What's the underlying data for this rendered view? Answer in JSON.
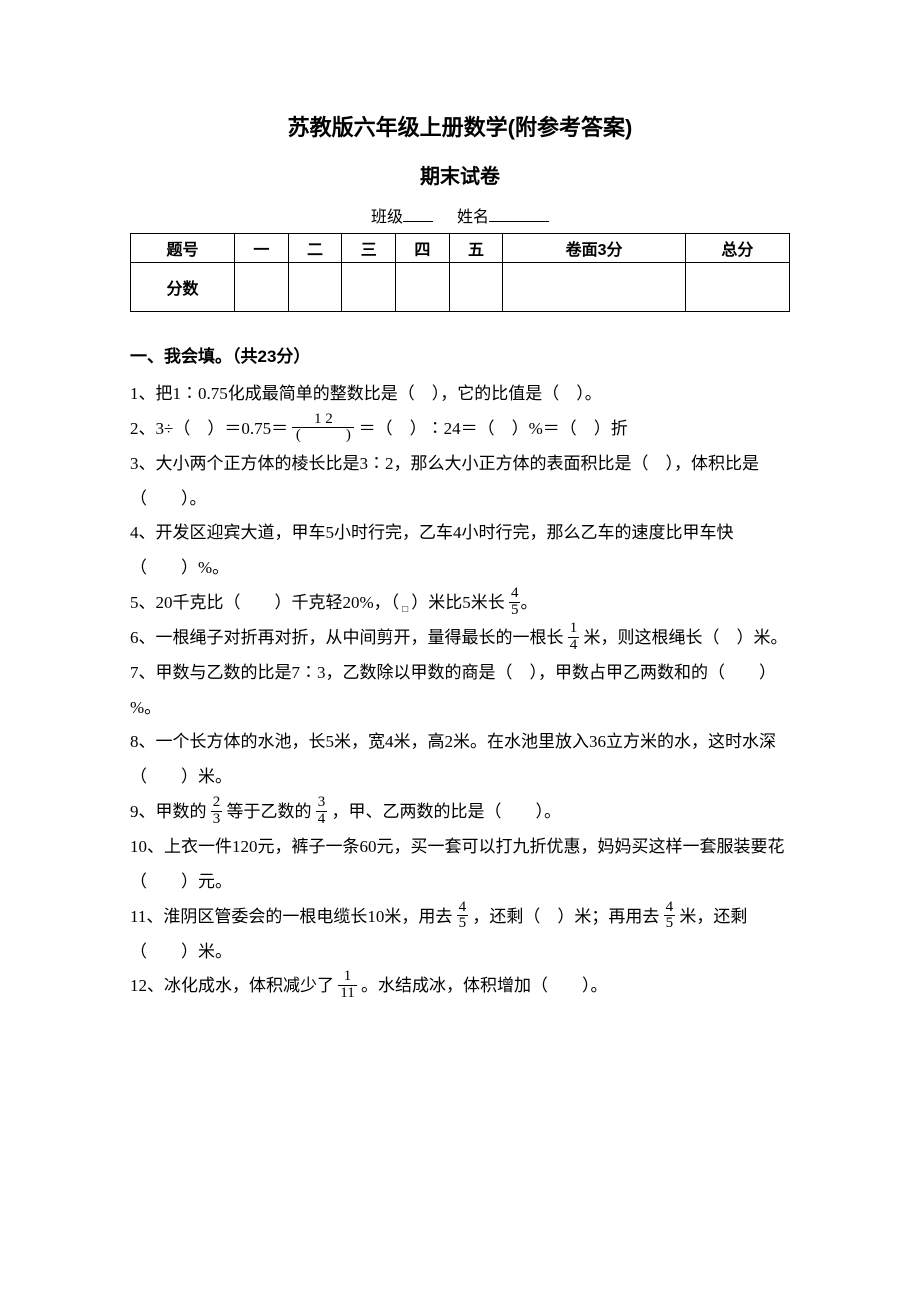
{
  "title_main": "苏教版六年级上册数学(附参考答案)",
  "title_sub": "期末试卷",
  "class_label": "班级",
  "name_label": "姓名",
  "score_table": {
    "headers": [
      "题号",
      "一",
      "二",
      "三",
      "四",
      "五",
      "卷面3分",
      "总分"
    ],
    "row_label": "分数"
  },
  "section1_head": "一、我会填。（共23分）",
  "q1": "1、把1∶0.75化成最简单的整数比是（　），它的比值是（　）。",
  "q2_a": "2、3÷（　）＝0.75＝",
  "q2_frac_num": "1  2",
  "q2_frac_den": "(　　　)",
  "q2_b": "＝（　）∶24＝（　）%＝（　）折",
  "q3": "3、大小两个正方体的棱长比是3∶2，那么大小正方体的表面积比是（　），体积比是（　　）。",
  "q4": "4、开发区迎宾大道，甲车5小时行完，乙车4小时行完，那么乙车的速度比甲车快（　　）%。",
  "q5_a": "5、20千克比（　　）千克轻20%，（",
  "q5_dot": "□",
  "q5_b": "）米比5米长",
  "q5_frac_num": "4",
  "q5_frac_den": "5",
  "q5_c": "。",
  "q6_a": "6、一根绳子对折再对折，从中间剪开，量得最长的一根长",
  "q6_frac_num": "1",
  "q6_frac_den": "4",
  "q6_b": "米，则这根绳长（　）米。",
  "q7": "7、甲数与乙数的比是7∶3，乙数除以甲数的商是（　），甲数占甲乙两数和的（　　）%。",
  "q8": "8、一个长方体的水池，长5米，宽4米，高2米。在水池里放入36立方米的水，这时水深（　　）米。",
  "q9_a": "9、甲数的",
  "q9_f1n": "2",
  "q9_f1d": "3",
  "q9_b": "等于乙数的",
  "q9_f2n": "3",
  "q9_f2d": "4",
  "q9_c": "，甲、乙两数的比是（　　）。",
  "q10": "10、上衣一件120元，裤子一条60元，买一套可以打九折优惠，妈妈买这样一套服装要花（　　）元。",
  "q11_a": "11、淮阴区管委会的一根电缆长10米，用去",
  "q11_f1n": "4",
  "q11_f1d": "5",
  "q11_b": "，还剩（　）米；再用去",
  "q11_f2n": "4",
  "q11_f2d": "5",
  "q11_c": "米，还剩（　　）米。",
  "q12_a": "12、冰化成水，体积减少了",
  "q12_fn": "1",
  "q12_fd": "11",
  "q12_b": "。水结成冰，体积增加（　　）。"
}
